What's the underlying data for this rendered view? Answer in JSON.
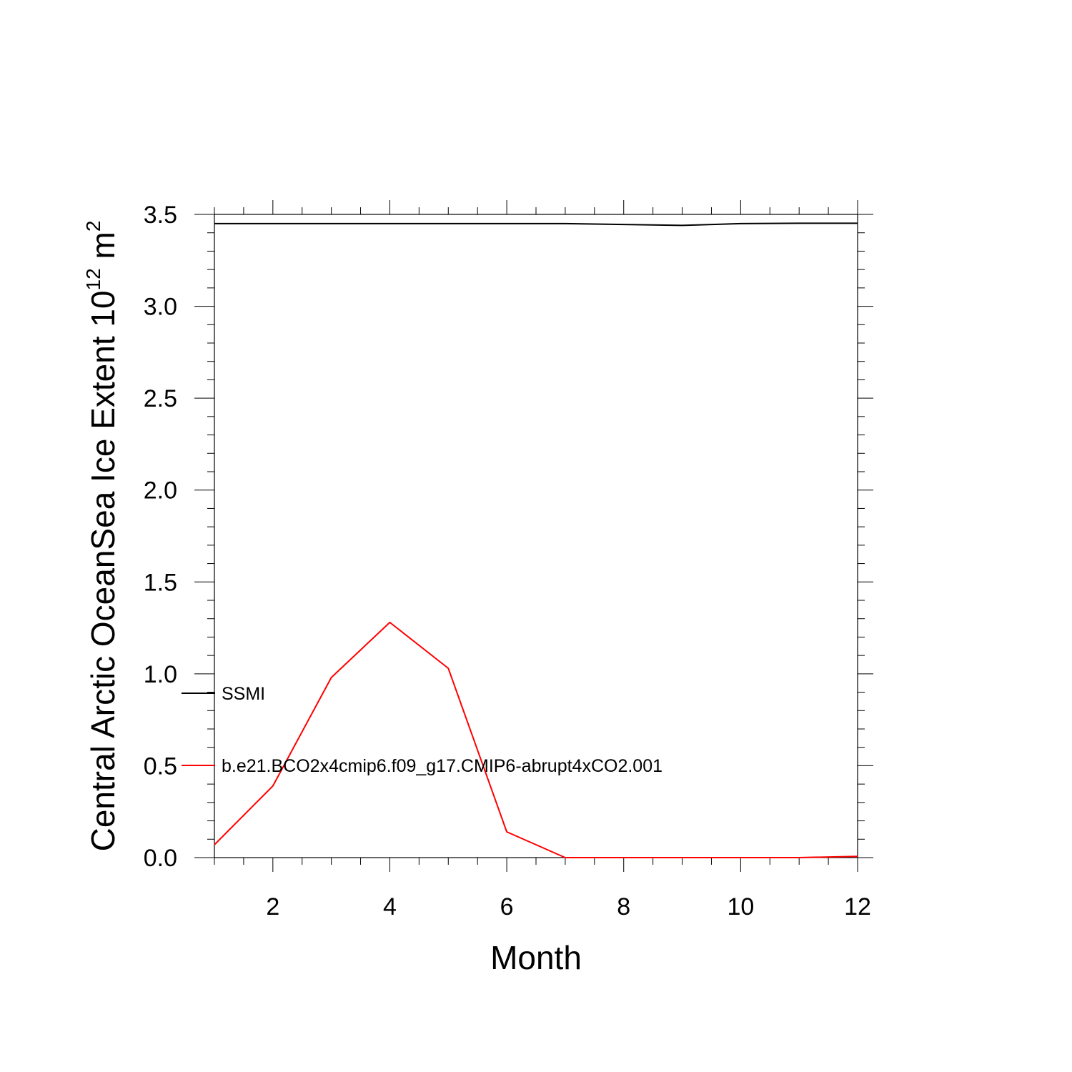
{
  "chart_data": {
    "type": "line",
    "title": "",
    "xlabel": "Month",
    "ylabel": {
      "main": "Central Arctic OceanSea Ice Extent 10",
      "exp": "12",
      "unit": " m",
      "unit_exp": "2"
    },
    "xlim": [
      1,
      12
    ],
    "ylim": [
      0,
      3.5
    ],
    "x_ticks": [
      2,
      4,
      6,
      8,
      10,
      12
    ],
    "x_tick_labels": [
      "2",
      "4",
      "6",
      "8",
      "10",
      "12"
    ],
    "y_ticks": [
      0,
      0.5,
      1,
      1.5,
      2,
      2.5,
      3,
      3.5
    ],
    "y_tick_labels": [
      "0.0",
      "0.5",
      "1.0",
      "1.5",
      "2.0",
      "2.5",
      "3.0",
      "3.5"
    ],
    "grid": false,
    "legend_position": "inside-left",
    "x": [
      1,
      2,
      3,
      4,
      5,
      6,
      7,
      8,
      9,
      10,
      11,
      12
    ],
    "series": [
      {
        "name": "SSMI",
        "color": "#000000",
        "values": [
          3.45,
          3.45,
          3.45,
          3.45,
          3.45,
          3.45,
          3.45,
          3.445,
          3.44,
          3.45,
          3.452,
          3.452
        ]
      },
      {
        "name": "b.e21.BCO2x4cmip6.f09_g17.CMIP6-abrupt4xCO2.001",
        "color": "#ff0000",
        "values": [
          0.07,
          0.39,
          0.98,
          1.28,
          1.03,
          0.14,
          0.0,
          0.0,
          0.0,
          0.0,
          0.0,
          0.007
        ]
      }
    ]
  }
}
